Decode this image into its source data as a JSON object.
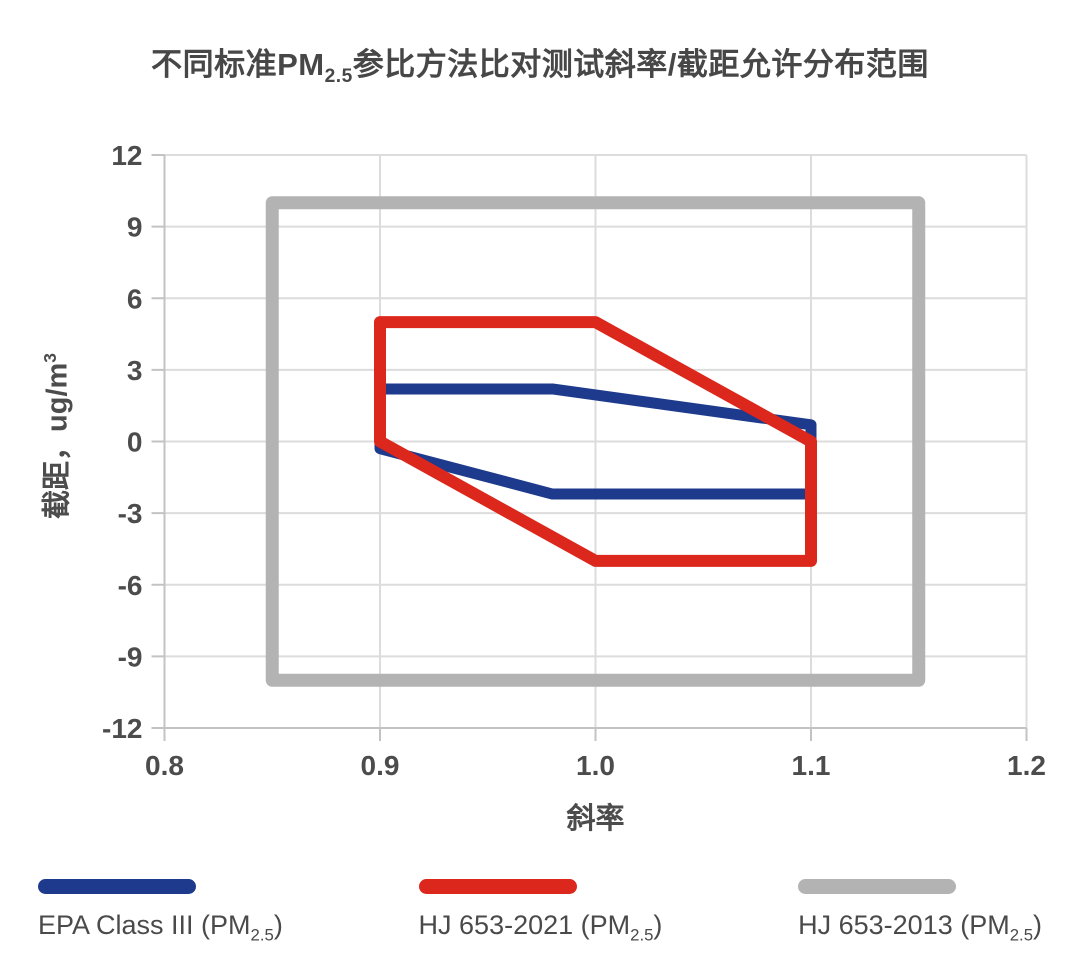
{
  "header": {
    "title": {
      "prefix": "不同标准PM",
      "sub": "2.5",
      "suffix": "参比方法比对测试斜率/截距允许分布范围"
    }
  },
  "axes": {
    "y_title": {
      "prefix": "截距，ug/m",
      "sup": "3"
    },
    "x_title": "斜率"
  },
  "legend": {
    "position": "bottom",
    "items": [
      {
        "prefix": "EPA Class III (PM",
        "sub": "2.5",
        "suffix": ")",
        "color": "#1E3A8C"
      },
      {
        "prefix": "HJ 653-2021 (PM",
        "sub": "2.5",
        "suffix": ")",
        "color": "#DB271C"
      },
      {
        "prefix": "HJ 653-2013 (PM",
        "sub": "2.5",
        "suffix": ")",
        "color": "#B3B3B3"
      }
    ]
  },
  "chart_data": {
    "type": "polygon",
    "title": "不同标准PM2.5参比方法比对测试斜率/截距允许分布范围",
    "xlabel": "斜率",
    "ylabel": "截距，ug/m³",
    "xlim": [
      0.8,
      1.2
    ],
    "ylim": [
      -12,
      12
    ],
    "grid": true,
    "legend_position": "bottom",
    "xticks": [
      {
        "value": 0.8,
        "label": "0.8"
      },
      {
        "value": 0.9,
        "label": "0.9"
      },
      {
        "value": 1.0,
        "label": "1.0"
      },
      {
        "value": 1.1,
        "label": "1.1"
      },
      {
        "value": 1.2,
        "label": "1.2"
      }
    ],
    "yticks": [
      {
        "value": 12,
        "label": "12"
      },
      {
        "value": 9,
        "label": "9"
      },
      {
        "value": 6,
        "label": "6"
      },
      {
        "value": 3,
        "label": "3"
      },
      {
        "value": 0,
        "label": "0"
      },
      {
        "value": -3,
        "label": "-3"
      },
      {
        "value": -6,
        "label": "-6"
      },
      {
        "value": -9,
        "label": "-9"
      },
      {
        "value": -12,
        "label": "-12"
      }
    ],
    "series": [
      {
        "id": "epa-class-iii",
        "name": "EPA Class III (PM2.5)",
        "color": "#1E3A8C",
        "stroke_width": 11,
        "fill": "none",
        "z": 2,
        "vertices": [
          [
            0.9,
            2.2
          ],
          [
            0.98,
            2.2
          ],
          [
            1.1,
            0.7
          ],
          [
            1.1,
            -2.2
          ],
          [
            0.98,
            -2.2
          ],
          [
            0.9,
            -0.3
          ]
        ]
      },
      {
        "id": "hj-653-2021",
        "name": "HJ 653-2021 (PM2.5)",
        "color": "#DB271C",
        "stroke_width": 12,
        "fill": "none",
        "z": 3,
        "vertices": [
          [
            0.9,
            5
          ],
          [
            1.0,
            5
          ],
          [
            1.1,
            0
          ],
          [
            1.1,
            -5
          ],
          [
            1.0,
            -5
          ],
          [
            0.9,
            0
          ]
        ]
      },
      {
        "id": "hj-653-2013",
        "name": "HJ 653-2013 (PM2.5)",
        "color": "#B3B3B3",
        "stroke_width": 13,
        "fill": "none",
        "z": 1,
        "vertices": [
          [
            0.85,
            10
          ],
          [
            1.15,
            10
          ],
          [
            1.15,
            -10
          ],
          [
            0.85,
            -10
          ]
        ]
      }
    ]
  }
}
